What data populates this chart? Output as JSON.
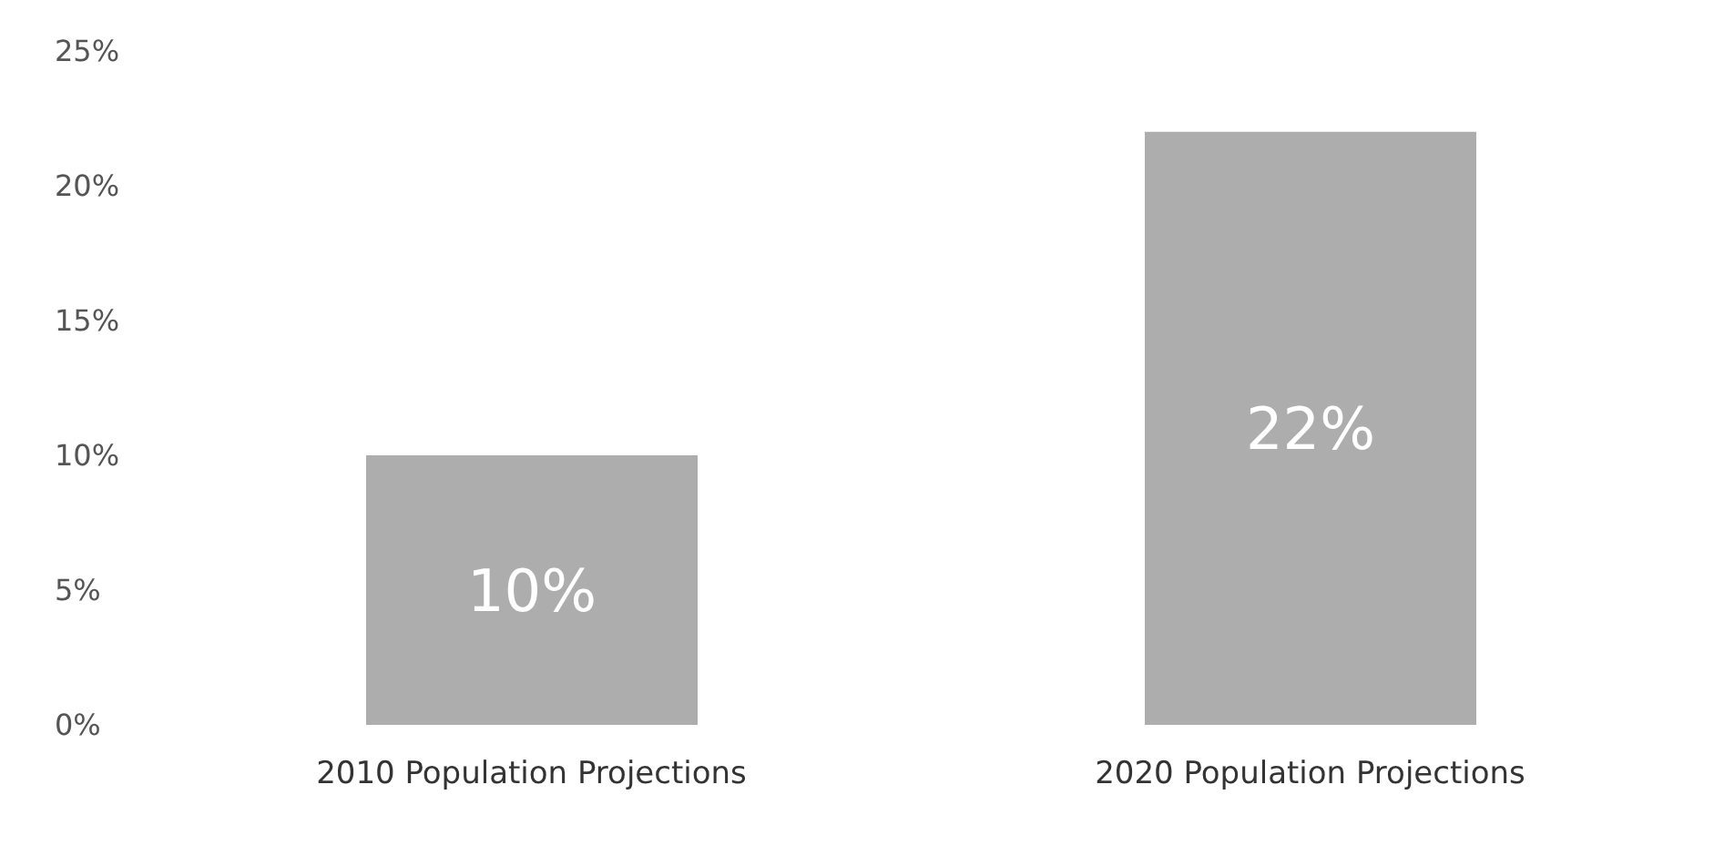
{
  "chart_data": {
    "type": "bar",
    "categories": [
      "2010 Population Projections",
      "2020 Population Projections"
    ],
    "values": [
      10,
      22
    ],
    "color": "#adadad",
    "value_labels": [
      "10%",
      "22%"
    ],
    "ylim": [
      0,
      25
    ],
    "yticks": [
      {
        "value": 0,
        "label": "0%"
      },
      {
        "value": 5,
        "label": "5%"
      },
      {
        "value": 10,
        "label": "10%"
      },
      {
        "value": 15,
        "label": "15%"
      },
      {
        "value": 20,
        "label": "20%"
      },
      {
        "value": 25,
        "label": "25%"
      }
    ],
    "grid": false
  }
}
